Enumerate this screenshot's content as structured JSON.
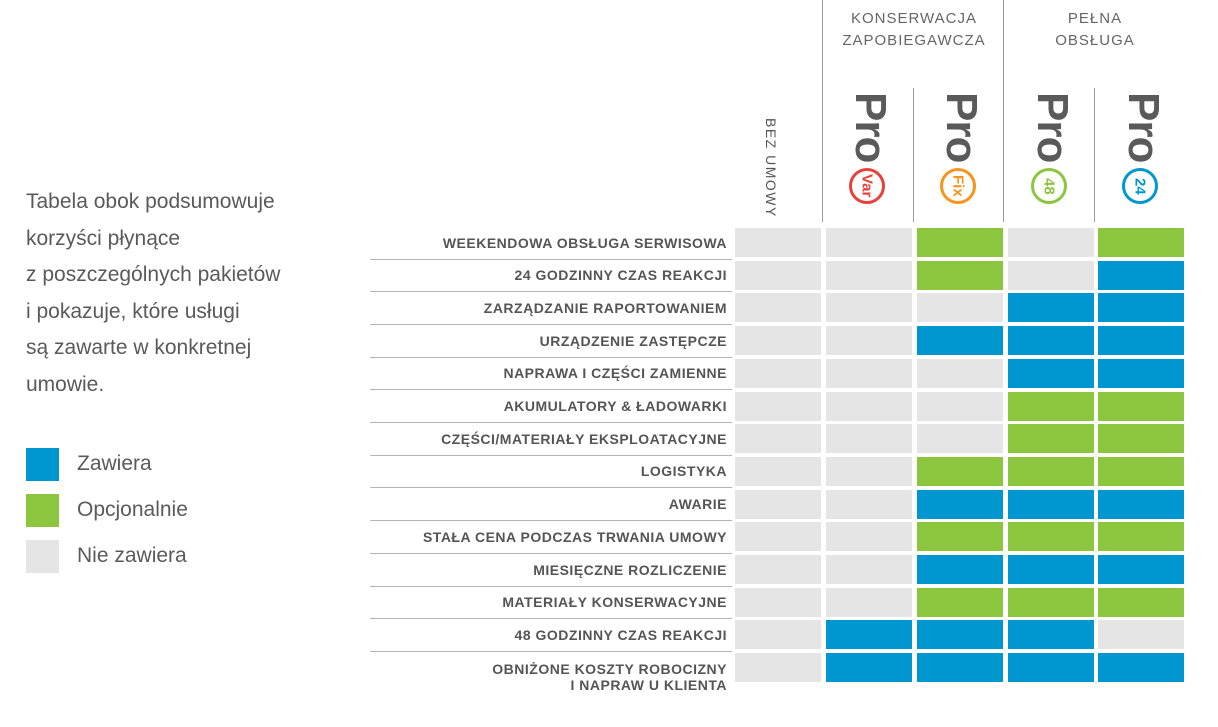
{
  "intro_text": [
    "Tabela obok podsumowuje",
    "korzyści płynące",
    "z poszczególnych pakietów",
    "i pokazuje, które usługi",
    "są zawarte w konkretnej",
    "umowie."
  ],
  "legend": [
    {
      "label": "Zawiera",
      "color": "#0097d0"
    },
    {
      "label": "Opcjonalnie",
      "color": "#8cc63e"
    },
    {
      "label": "Nie zawiera",
      "color": "#e5e5e6"
    }
  ],
  "groups": [
    {
      "lines": [
        "KONSERWACJA",
        "ZAPOBIEGAWCZA"
      ]
    },
    {
      "lines": [
        "PEŁNA",
        "OBSŁUGA"
      ]
    }
  ],
  "chart_data": {
    "type": "table",
    "columns": [
      {
        "label": "BEZ UMOWY"
      },
      {
        "label": "Pro",
        "badge": "Var",
        "badge_color": "#e6413a"
      },
      {
        "label": "Pro",
        "badge": "Fix",
        "badge_color": "#f7941d"
      },
      {
        "label": "Pro",
        "badge": "48",
        "badge_color": "#8cc63e"
      },
      {
        "label": "Pro",
        "badge": "24",
        "badge_color": "#0097d0"
      }
    ],
    "rows": [
      {
        "label": [
          "WEEKENDOWA OBSŁUGA SERWISOWA"
        ],
        "values": [
          "Nie zawiera",
          "Nie zawiera",
          "Opcjonalnie",
          "Nie zawiera",
          "Opcjonalnie"
        ]
      },
      {
        "label": [
          "24 GODZINNY CZAS REAKCJI"
        ],
        "values": [
          "Nie zawiera",
          "Nie zawiera",
          "Opcjonalnie",
          "Nie zawiera",
          "Zawiera"
        ]
      },
      {
        "label": [
          "ZARZĄDZANIE RAPORTOWANIEM"
        ],
        "values": [
          "Nie zawiera",
          "Nie zawiera",
          "Nie zawiera",
          "Zawiera",
          "Zawiera"
        ]
      },
      {
        "label": [
          "URZĄDZENIE ZASTĘPCZE"
        ],
        "values": [
          "Nie zawiera",
          "Nie zawiera",
          "Zawiera",
          "Zawiera",
          "Zawiera"
        ]
      },
      {
        "label": [
          "NAPRAWA I CZĘŚCI ZAMIENNE"
        ],
        "values": [
          "Nie zawiera",
          "Nie zawiera",
          "Nie zawiera",
          "Zawiera",
          "Zawiera"
        ]
      },
      {
        "label": [
          "AKUMULATORY & ŁADOWARKI"
        ],
        "values": [
          "Nie zawiera",
          "Nie zawiera",
          "Nie zawiera",
          "Opcjonalnie",
          "Opcjonalnie"
        ]
      },
      {
        "label": [
          "CZĘŚCI/MATERIAŁY EKSPLOATACYJNE"
        ],
        "values": [
          "Nie zawiera",
          "Nie zawiera",
          "Nie zawiera",
          "Opcjonalnie",
          "Opcjonalnie"
        ]
      },
      {
        "label": [
          "LOGISTYKA"
        ],
        "values": [
          "Nie zawiera",
          "Nie zawiera",
          "Opcjonalnie",
          "Opcjonalnie",
          "Opcjonalnie"
        ]
      },
      {
        "label": [
          "AWARIE"
        ],
        "values": [
          "Nie zawiera",
          "Nie zawiera",
          "Zawiera",
          "Zawiera",
          "Zawiera"
        ]
      },
      {
        "label": [
          "STAŁA CENA PODCZAS TRWANIA UMOWY"
        ],
        "values": [
          "Nie zawiera",
          "Nie zawiera",
          "Opcjonalnie",
          "Opcjonalnie",
          "Opcjonalnie"
        ]
      },
      {
        "label": [
          "MIESIĘCZNE ROZLICZENIE"
        ],
        "values": [
          "Nie zawiera",
          "Nie zawiera",
          "Zawiera",
          "Zawiera",
          "Zawiera"
        ]
      },
      {
        "label": [
          "MATERIAŁY KONSERWACYJNE"
        ],
        "values": [
          "Nie zawiera",
          "Nie zawiera",
          "Opcjonalnie",
          "Opcjonalnie",
          "Opcjonalnie"
        ]
      },
      {
        "label": [
          "48 GODZINNY CZAS REAKCJI"
        ],
        "values": [
          "Nie zawiera",
          "Zawiera",
          "Zawiera",
          "Zawiera",
          "Nie zawiera"
        ]
      },
      {
        "label": [
          "OBNIŻONE KOSZTY ROBOCIZNY",
          "I NAPRAW U KLIENTA"
        ],
        "values": [
          "Nie zawiera",
          "Zawiera",
          "Zawiera",
          "Zawiera",
          "Zawiera"
        ]
      }
    ]
  }
}
